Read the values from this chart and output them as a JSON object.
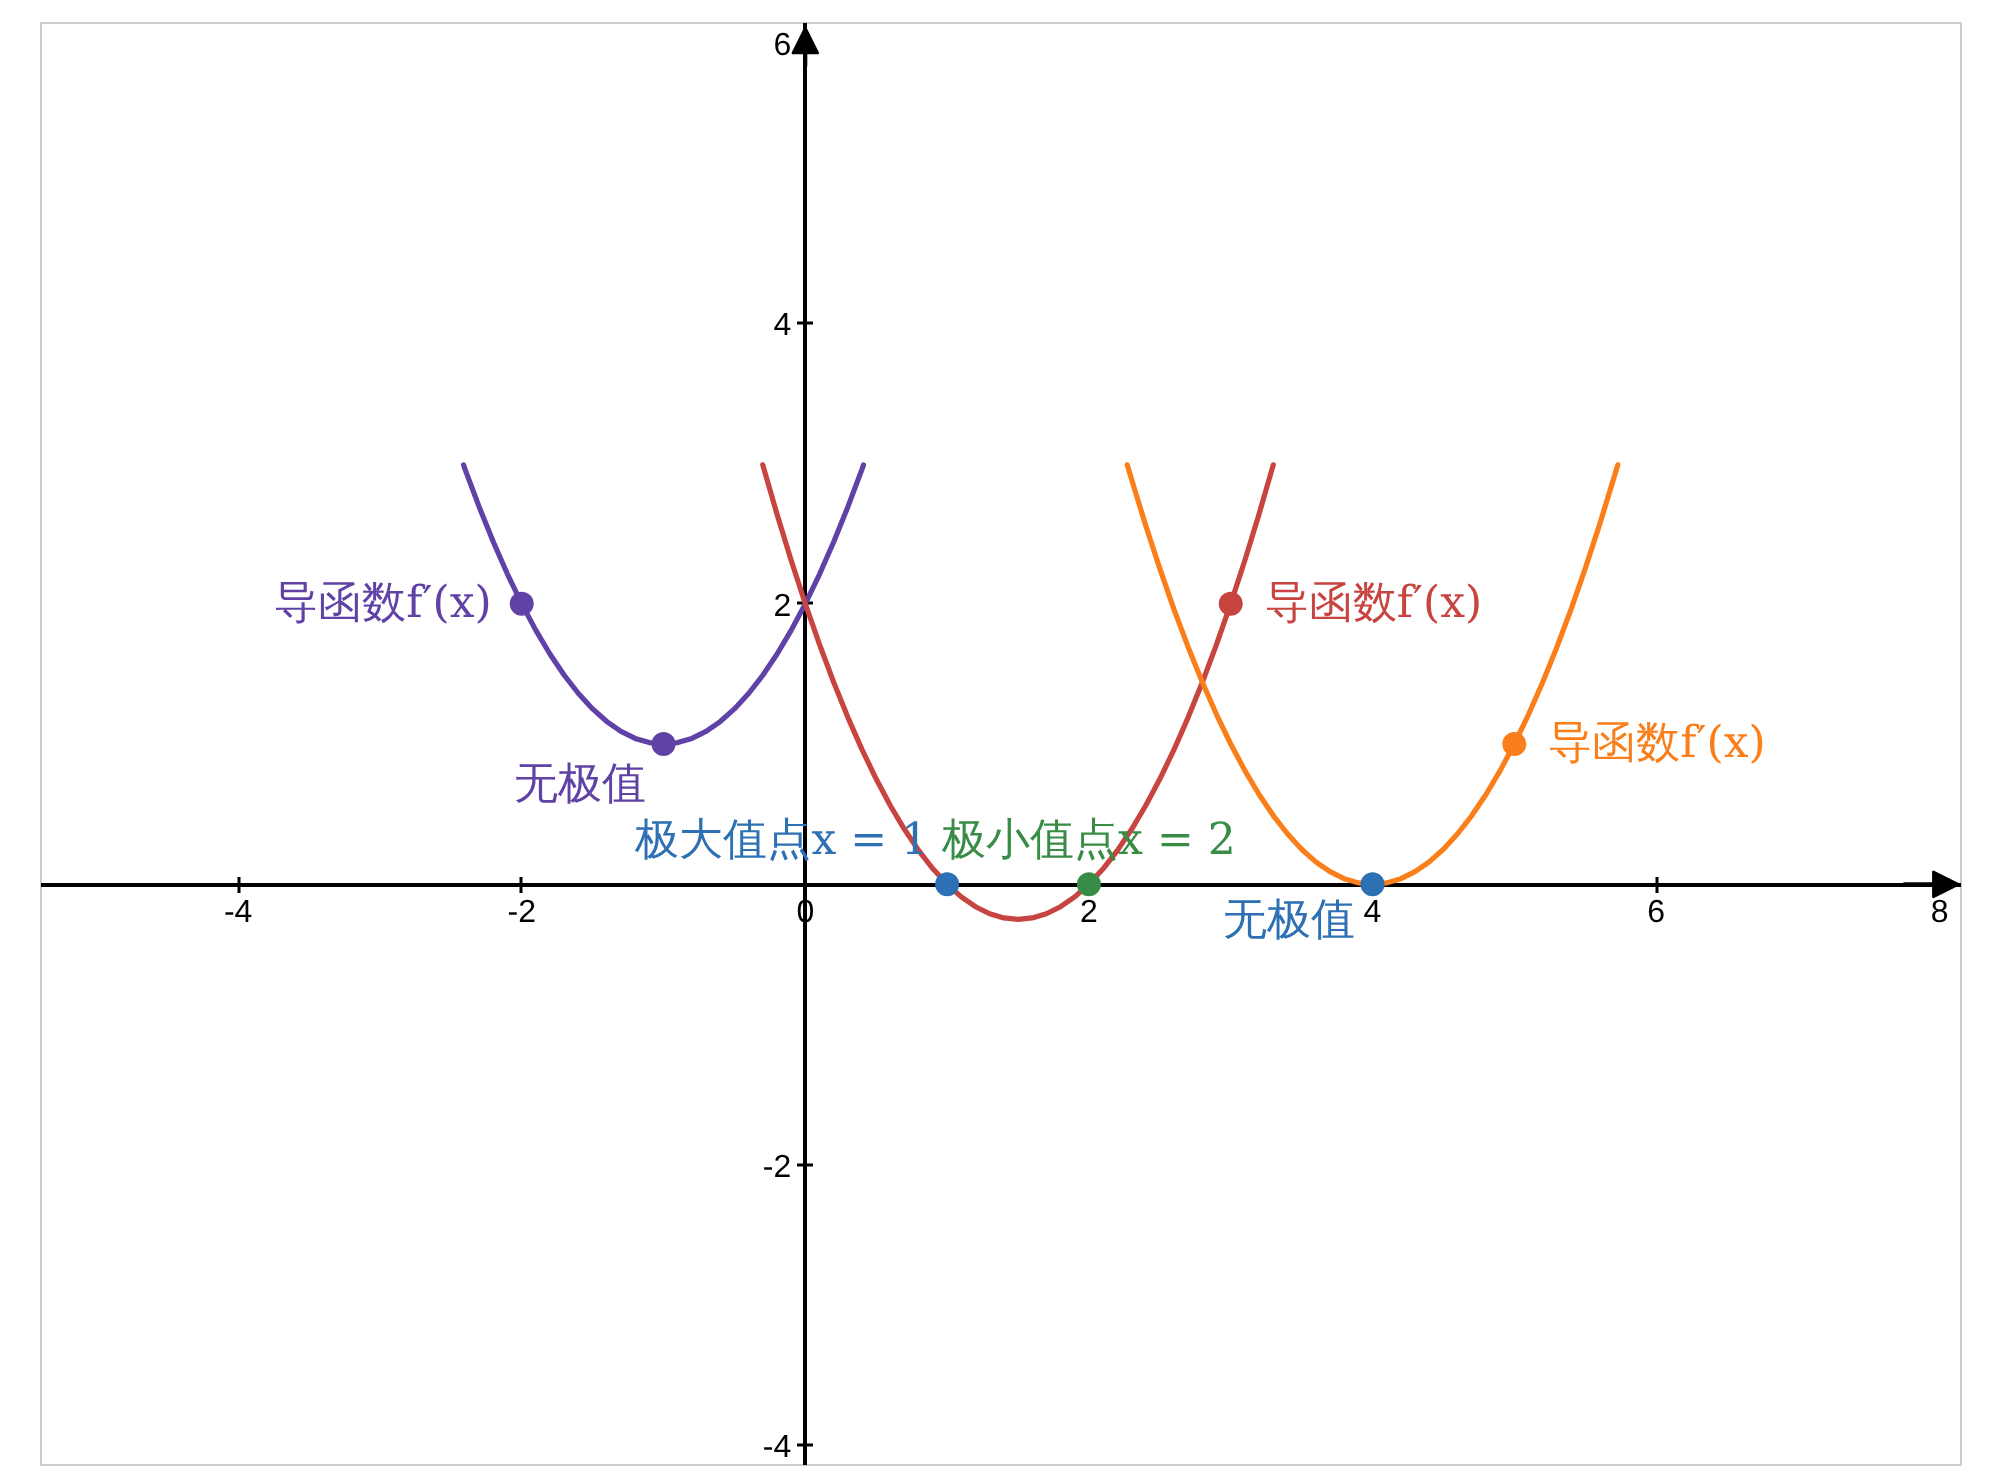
{
  "chart_data": {
    "type": "line",
    "xlim": [
      -5.39,
      8.15
    ],
    "ylim": [
      -4.14,
      6.14
    ],
    "xticks": [
      -4,
      -2,
      0,
      2,
      4,
      6,
      8
    ],
    "yticks": [
      -4,
      -2,
      2,
      4,
      6
    ],
    "grid": false,
    "line_style": "solid",
    "series": [
      {
        "color": "#6042a6",
        "x": [
          -2.41,
          -2.4,
          -2.3,
          -2.2,
          -2.1,
          -2.0,
          -1.9,
          -1.8,
          -1.7,
          -1.6,
          -1.5,
          -1.4,
          -1.3,
          -1.2,
          -1.1,
          -1.0,
          -0.9,
          -0.8,
          -0.7,
          -0.6,
          -0.5,
          -0.4,
          -0.3,
          -0.2,
          -0.1,
          0,
          0.1,
          0.2,
          0.3,
          0.4,
          0.41
        ],
        "values": [
          2.99,
          2.96,
          2.69,
          2.44,
          2.21,
          2,
          1.81,
          1.64,
          1.49,
          1.36,
          1.25,
          1.16,
          1.09,
          1.04,
          1.01,
          1,
          1.01,
          1.04,
          1.09,
          1.16,
          1.25,
          1.36,
          1.49,
          1.64,
          1.81,
          2,
          2.21,
          2.44,
          2.69,
          2.96,
          2.99
        ]
      },
      {
        "type": "scatter",
        "name": "导函数f′(x)",
        "color": "#6042a6",
        "marker": "circle",
        "x": [
          -2
        ],
        "values": [
          2
        ]
      },
      {
        "type": "scatter",
        "name": "无极值",
        "color": "#6042a6",
        "marker": "circle",
        "x": [
          -1
        ],
        "values": [
          1
        ]
      },
      {
        "color": "#c74440",
        "x": [
          -0.3,
          -0.2,
          -0.1,
          0,
          0.1,
          0.2,
          0.3,
          0.4,
          0.5,
          0.6,
          0.7,
          0.8,
          0.9,
          1.0,
          1.1,
          1.2,
          1.3,
          1.4,
          1.5,
          1.6,
          1.7,
          1.8,
          1.9,
          2.0,
          2.1,
          2.2,
          2.3,
          2.4,
          2.5,
          2.6,
          2.7,
          2.8,
          2.9,
          3.0,
          3.1,
          3.2,
          3.3
        ],
        "values": [
          2.99,
          2.64,
          2.31,
          2,
          1.71,
          1.44,
          1.19,
          0.96,
          0.75,
          0.56,
          0.39,
          0.24,
          0.11,
          0,
          -0.09,
          -0.16,
          -0.21,
          -0.24,
          -0.25,
          -0.24,
          -0.21,
          -0.16,
          -0.09,
          0,
          0.11,
          0.24,
          0.39,
          0.56,
          0.75,
          0.96,
          1.19,
          1.44,
          1.71,
          2,
          2.31,
          2.64,
          2.99
        ]
      },
      {
        "type": "scatter",
        "name": "导函数f′(x)",
        "color": "#c74440",
        "marker": "circle",
        "x": [
          3
        ],
        "values": [
          2
        ]
      },
      {
        "type": "scatter",
        "name": "极大值点x = 1",
        "color": "#2d70b3",
        "marker": "circle",
        "x": [
          1
        ],
        "values": [
          0
        ]
      },
      {
        "type": "scatter",
        "name": "极小值点x = 2",
        "color": "#388c46",
        "marker": "circle",
        "x": [
          2
        ],
        "values": [
          0
        ]
      },
      {
        "color": "#fa7e19",
        "x": [
          2.27,
          2.3,
          2.4,
          2.5,
          2.6,
          2.7,
          2.8,
          2.9,
          3.0,
          3.1,
          3.2,
          3.3,
          3.4,
          3.5,
          3.6,
          3.7,
          3.8,
          3.9,
          4.0,
          4.1,
          4.2,
          4.3,
          4.4,
          4.5,
          4.6,
          4.7,
          4.8,
          4.9,
          5.0,
          5.1,
          5.2,
          5.3,
          5.4,
          5.5,
          5.6,
          5.7,
          5.73
        ],
        "values": [
          2.99,
          2.89,
          2.56,
          2.25,
          1.96,
          1.69,
          1.44,
          1.21,
          1,
          0.81,
          0.64,
          0.49,
          0.36,
          0.25,
          0.16,
          0.09,
          0.04,
          0.01,
          0,
          0.01,
          0.04,
          0.09,
          0.16,
          0.25,
          0.36,
          0.49,
          0.64,
          0.81,
          1,
          1.21,
          1.44,
          1.69,
          1.96,
          2.25,
          2.56,
          2.89,
          2.99
        ]
      },
      {
        "type": "scatter",
        "name": "导函数f′(x)",
        "color": "#fa7e19",
        "marker": "circle",
        "x": [
          5
        ],
        "values": [
          1
        ]
      },
      {
        "type": "scatter",
        "name": "无极值",
        "color": "#2d70b3",
        "marker": "circle",
        "x": [
          4
        ],
        "values": [
          0
        ]
      }
    ]
  }
}
